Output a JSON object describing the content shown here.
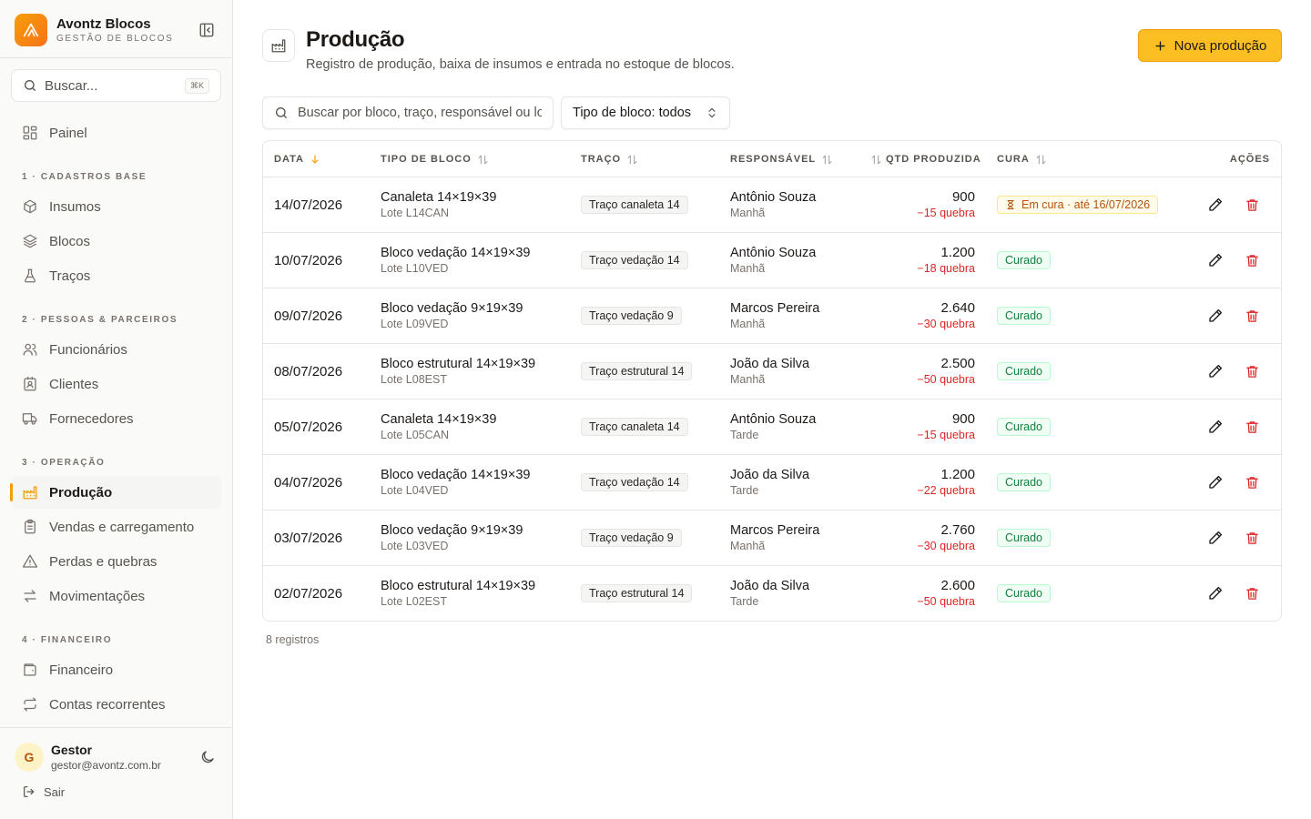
{
  "brand": {
    "name": "Avontz Blocos",
    "subtitle": "GESTÃO DE BLOCOS"
  },
  "sidebar_search": {
    "placeholder": "Buscar...",
    "shortcut": "⌘K"
  },
  "nav": {
    "painel": "Painel",
    "sections": [
      {
        "title": "1 · CADASTROS BASE",
        "items": [
          "Insumos",
          "Blocos",
          "Traços"
        ]
      },
      {
        "title": "2 · PESSOAS & PARCEIROS",
        "items": [
          "Funcionários",
          "Clientes",
          "Fornecedores"
        ]
      },
      {
        "title": "3 · OPERAÇÃO",
        "items": [
          "Produção",
          "Vendas e carregamento",
          "Perdas e quebras",
          "Movimentações"
        ]
      },
      {
        "title": "4 · FINANCEIRO",
        "items": [
          "Financeiro",
          "Contas recorrentes"
        ]
      }
    ],
    "active": "Produção"
  },
  "user": {
    "initial": "G",
    "name": "Gestor",
    "email": "gestor@avontz.com.br",
    "logout": "Sair"
  },
  "page": {
    "title": "Produção",
    "subtitle": "Registro de produção, baixa de insumos e entrada no estoque de blocos.",
    "new_button": "Nova produção"
  },
  "filters": {
    "search_placeholder": "Buscar por bloco, traço, responsável ou lote",
    "type_select": "Tipo de bloco: todos"
  },
  "table": {
    "columns": [
      "DATA",
      "TIPO DE BLOCO",
      "TRAÇO",
      "RESPONSÁVEL",
      "QTD PRODUZIDA",
      "CURA",
      "AÇÕES"
    ],
    "rows": [
      {
        "date": "14/07/2026",
        "type": "Canaleta 14×19×39",
        "lot": "Lote L14CAN",
        "trace": "Traço canaleta 14",
        "resp": "Antônio Souza",
        "shift": "Manhã",
        "qty": "900",
        "loss": "−15 quebra",
        "cure": "Em cura · até 16/07/2026",
        "cure_status": "curing"
      },
      {
        "date": "10/07/2026",
        "type": "Bloco vedação 14×19×39",
        "lot": "Lote L10VED",
        "trace": "Traço vedação 14",
        "resp": "Antônio Souza",
        "shift": "Manhã",
        "qty": "1.200",
        "loss": "−18 quebra",
        "cure": "Curado",
        "cure_status": "cured"
      },
      {
        "date": "09/07/2026",
        "type": "Bloco vedação 9×19×39",
        "lot": "Lote L09VED",
        "trace": "Traço vedação 9",
        "resp": "Marcos Pereira",
        "shift": "Manhã",
        "qty": "2.640",
        "loss": "−30 quebra",
        "cure": "Curado",
        "cure_status": "cured"
      },
      {
        "date": "08/07/2026",
        "type": "Bloco estrutural 14×19×39",
        "lot": "Lote L08EST",
        "trace": "Traço estrutural 14",
        "resp": "João da Silva",
        "shift": "Manhã",
        "qty": "2.500",
        "loss": "−50 quebra",
        "cure": "Curado",
        "cure_status": "cured"
      },
      {
        "date": "05/07/2026",
        "type": "Canaleta 14×19×39",
        "lot": "Lote L05CAN",
        "trace": "Traço canaleta 14",
        "resp": "Antônio Souza",
        "shift": "Tarde",
        "qty": "900",
        "loss": "−15 quebra",
        "cure": "Curado",
        "cure_status": "cured"
      },
      {
        "date": "04/07/2026",
        "type": "Bloco vedação 14×19×39",
        "lot": "Lote L04VED",
        "trace": "Traço vedação 14",
        "resp": "João da Silva",
        "shift": "Tarde",
        "qty": "1.200",
        "loss": "−22 quebra",
        "cure": "Curado",
        "cure_status": "cured"
      },
      {
        "date": "03/07/2026",
        "type": "Bloco vedação 9×19×39",
        "lot": "Lote L03VED",
        "trace": "Traço vedação 9",
        "resp": "Marcos Pereira",
        "shift": "Manhã",
        "qty": "2.760",
        "loss": "−30 quebra",
        "cure": "Curado",
        "cure_status": "cured"
      },
      {
        "date": "02/07/2026",
        "type": "Bloco estrutural 14×19×39",
        "lot": "Lote L02EST",
        "trace": "Traço estrutural 14",
        "resp": "João da Silva",
        "shift": "Tarde",
        "qty": "2.600",
        "loss": "−50 quebra",
        "cure": "Curado",
        "cure_status": "cured"
      }
    ],
    "count": "8 registros"
  },
  "colors": {
    "accent": "#f59e0b",
    "button": "#fbbf24",
    "danger": "#dc2626",
    "success": "#15803d"
  },
  "icons": {
    "brand": "triangle-logo-icon",
    "collapse": "sidebar-collapse-icon",
    "search": "search-icon",
    "theme": "moon-icon",
    "logout": "logout-icon",
    "edit": "pencil-icon",
    "delete": "trash-icon",
    "cure": "hourglass-icon"
  }
}
